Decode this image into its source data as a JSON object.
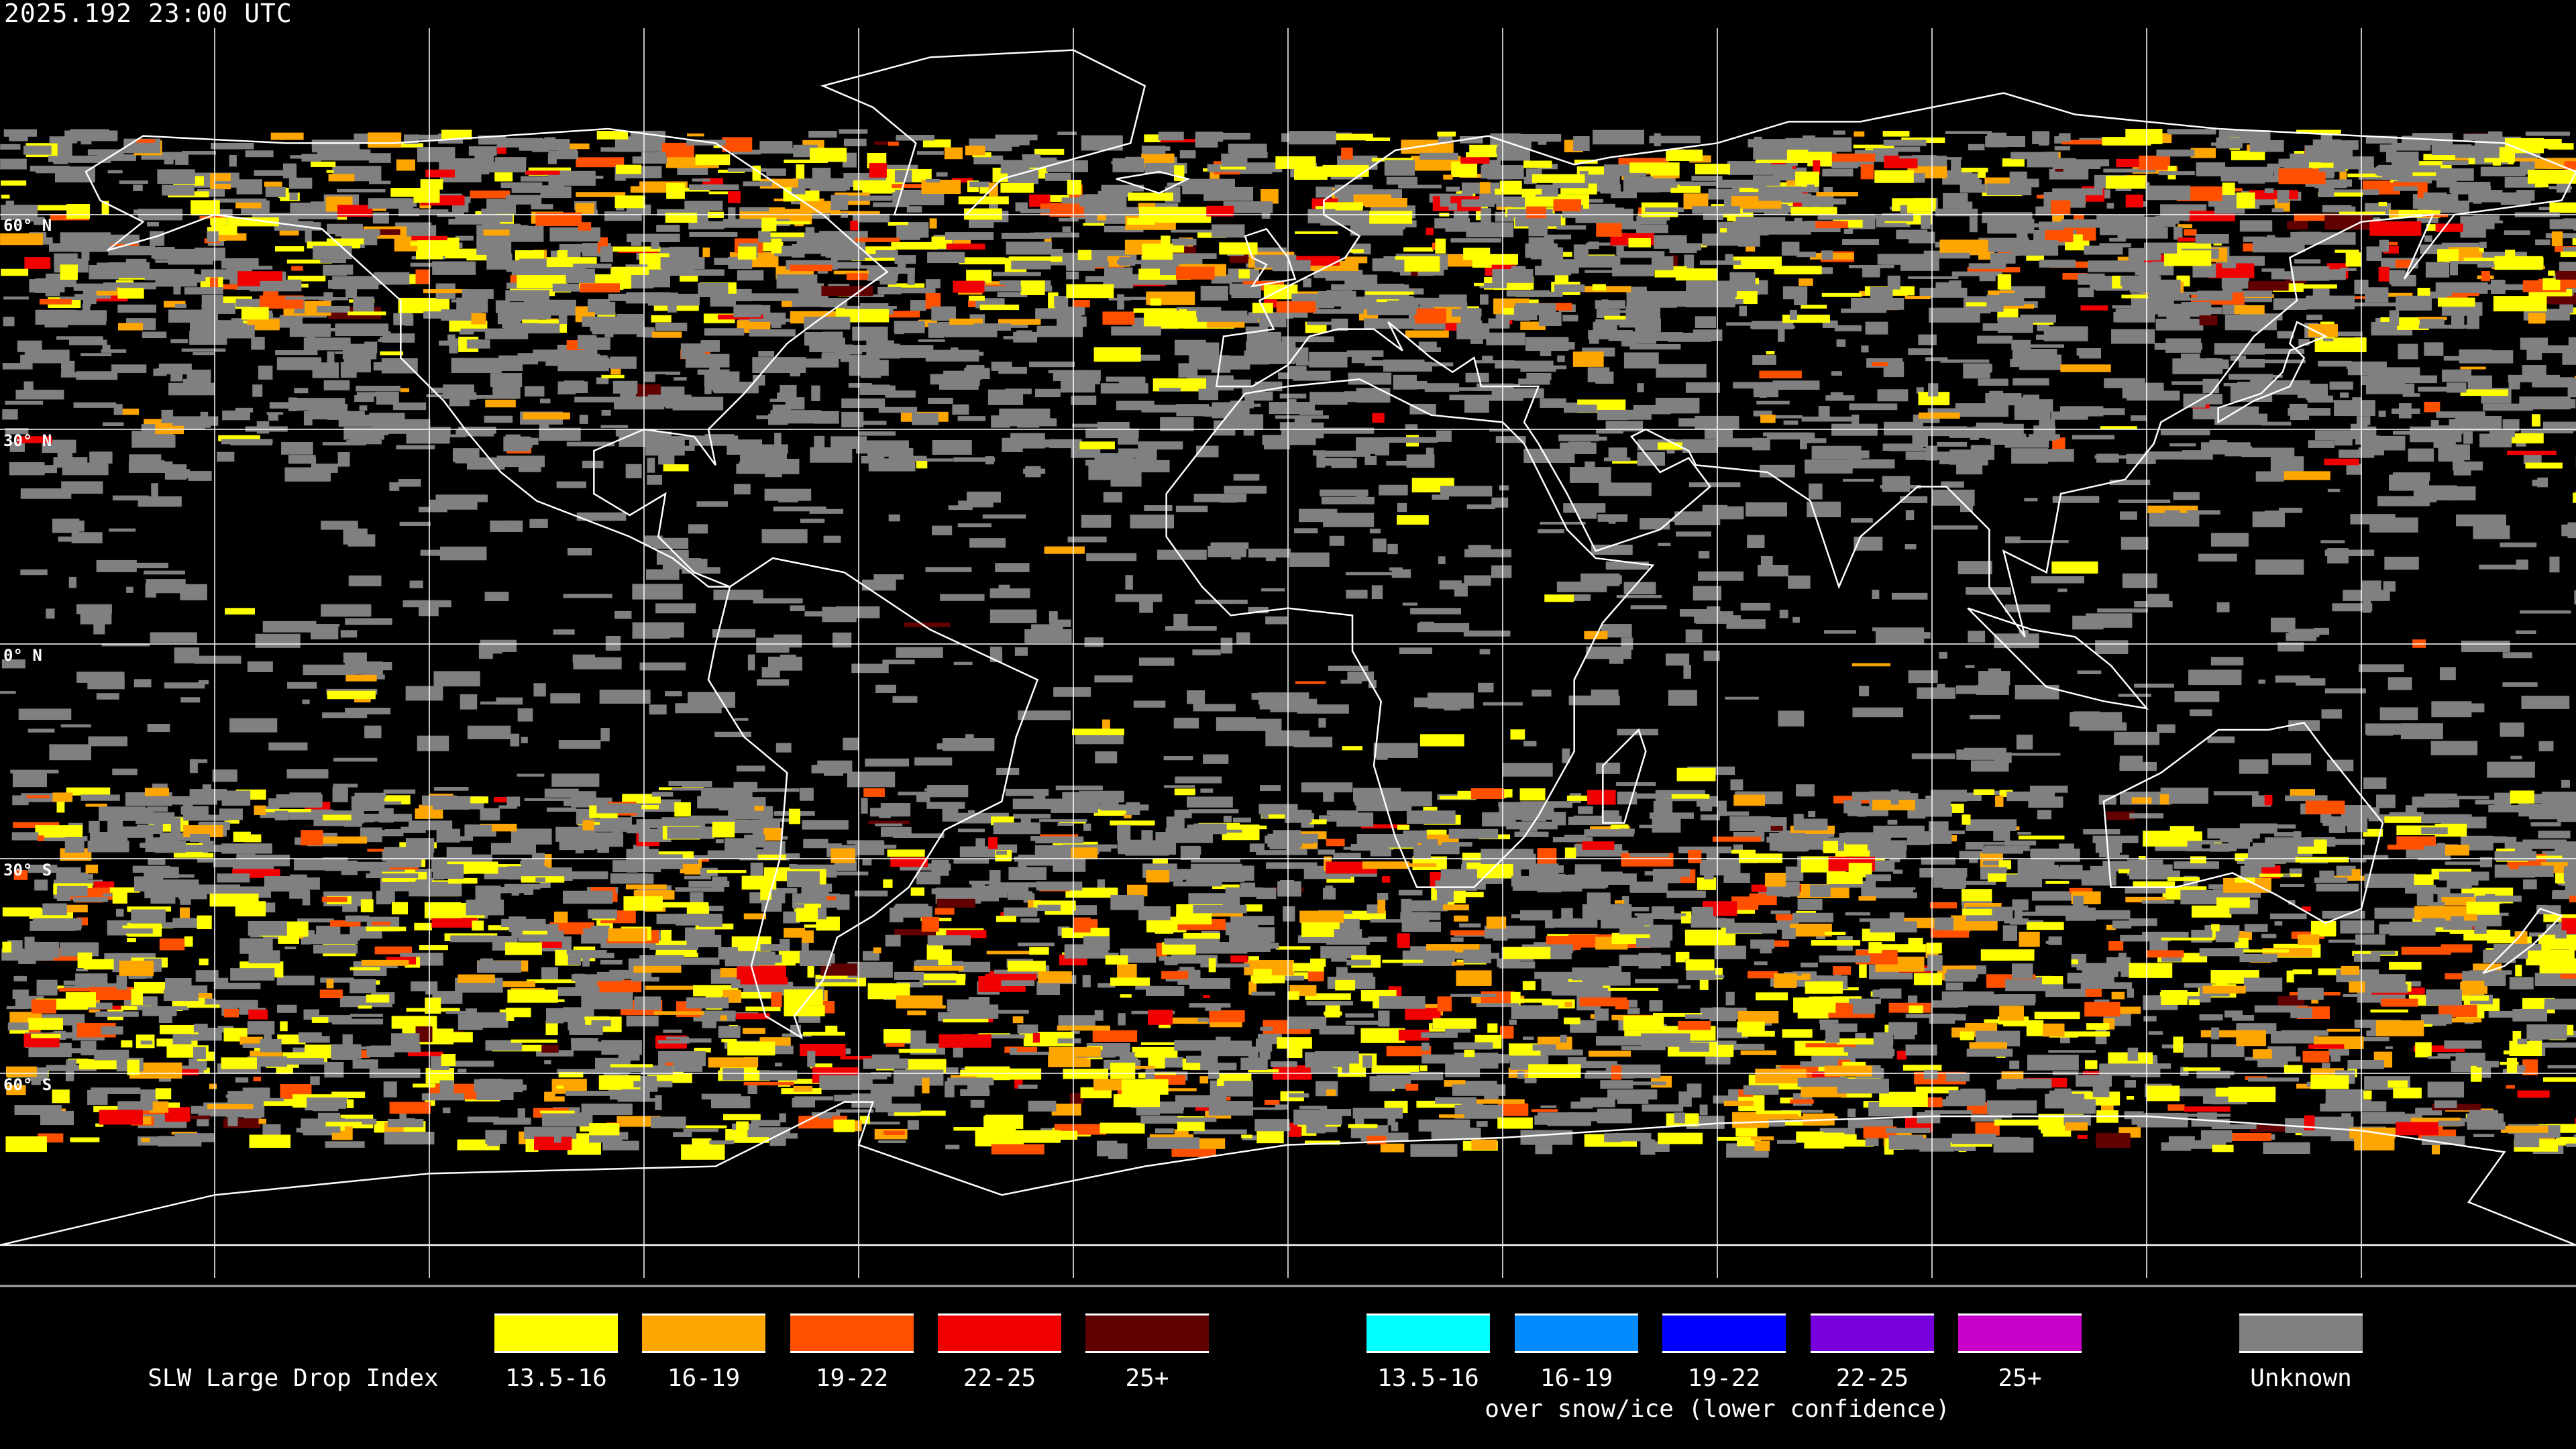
{
  "header": {
    "timestamp": "2025.192 23:00 UTC"
  },
  "map": {
    "projection": "equirectangular",
    "latitude_labels": [
      "60° N",
      "30° N",
      "0° N",
      "30° S",
      "60° S"
    ],
    "colors": {
      "background": "#000000",
      "coastline": "#ffffff",
      "grid": "#ffffff",
      "unknown": "#808080"
    }
  },
  "legend": {
    "title": "SLW Large Drop Index",
    "primary": [
      {
        "label": "13.5-16",
        "color": "#ffff00"
      },
      {
        "label": "16-19",
        "color": "#ffa500"
      },
      {
        "label": "19-22",
        "color": "#ff5000"
      },
      {
        "label": "22-25",
        "color": "#f00000"
      },
      {
        "label": "25+",
        "color": "#600000"
      }
    ],
    "snow_ice": [
      {
        "label": "13.5-16",
        "color": "#00ffff"
      },
      {
        "label": "16-19",
        "color": "#008cff"
      },
      {
        "label": "19-22",
        "color": "#0000ff"
      },
      {
        "label": "22-25",
        "color": "#7800dc"
      },
      {
        "label": "25+",
        "color": "#c800c8"
      }
    ],
    "snow_ice_caption": "over snow/ice (lower confidence)",
    "unknown": {
      "label": "Unknown",
      "color": "#808080"
    }
  }
}
